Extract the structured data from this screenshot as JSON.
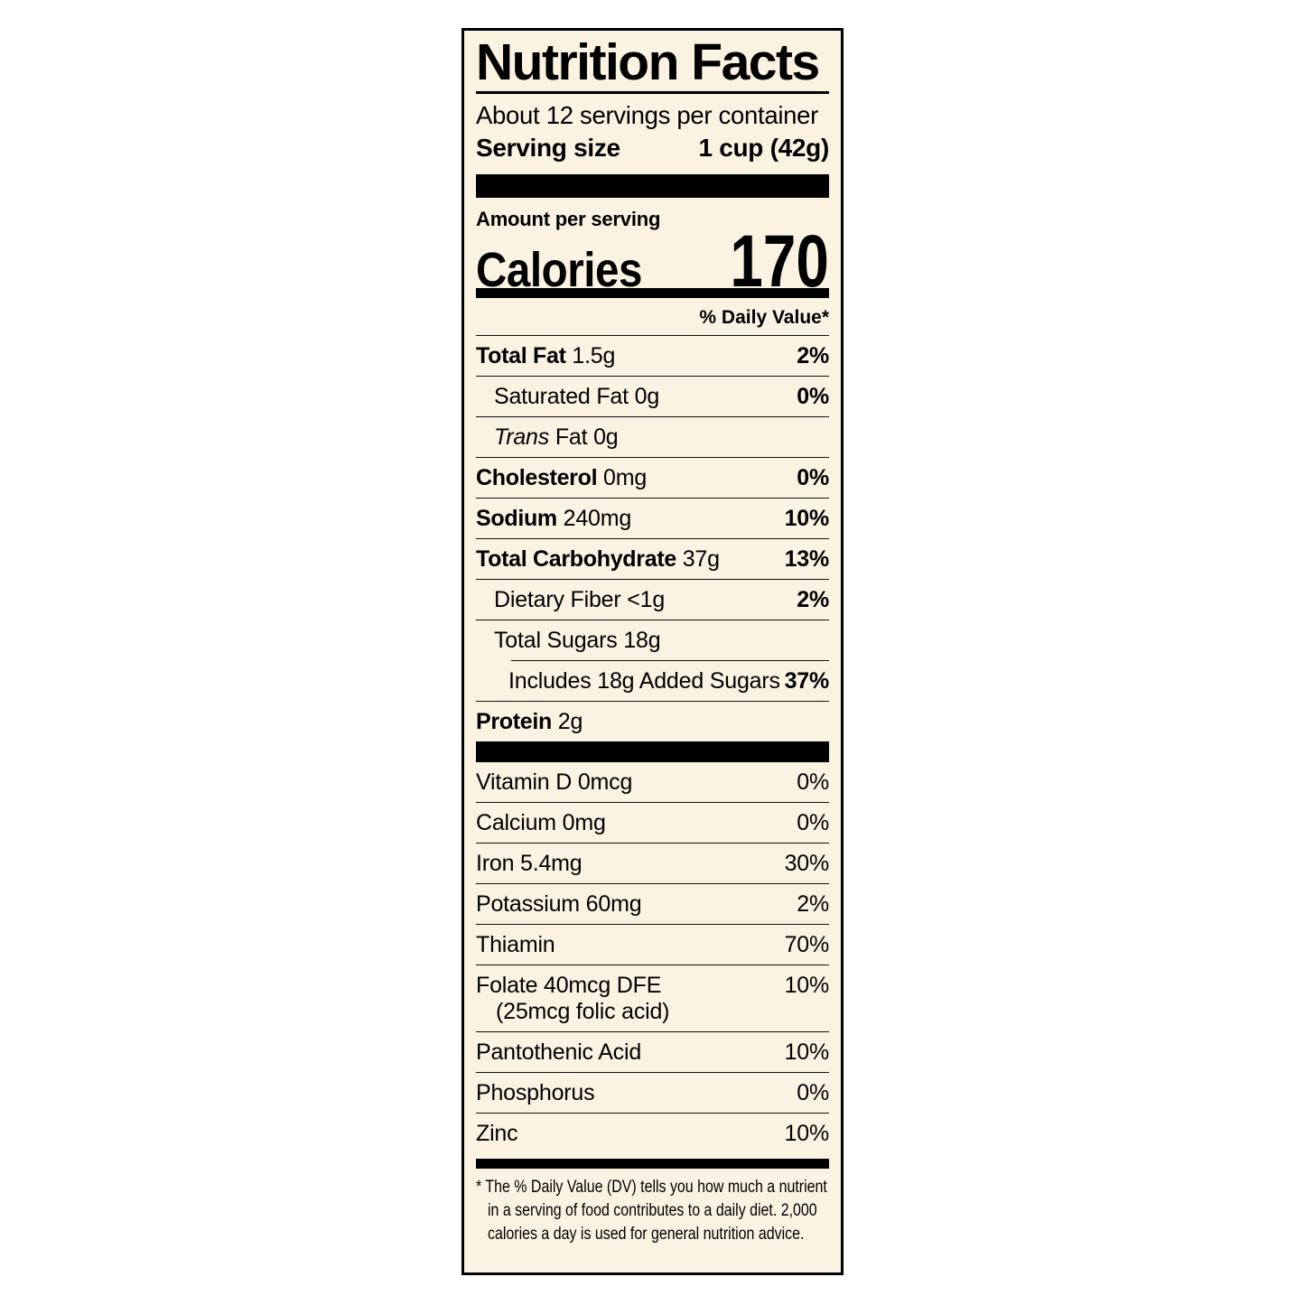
{
  "colors": {
    "label_background": "#faf3e2",
    "ink": "#000000",
    "page_background": "#ffffff"
  },
  "header": {
    "title": "Nutrition Facts",
    "servings_per_container": "About 12 servings per container",
    "serving_size_label": "Serving size",
    "serving_size_value": "1 cup (42g)"
  },
  "calories": {
    "amount_per_serving": "Amount per serving",
    "label": "Calories",
    "value": "170"
  },
  "daily_value_header": "% Daily Value*",
  "nutrients": [
    {
      "name": "Total Fat",
      "amount": "1.5g",
      "dv": "2%"
    },
    {
      "name": "Saturated Fat",
      "amount": "0g",
      "dv": "0%"
    },
    {
      "name_italic": "Trans",
      "name": "Fat",
      "amount": "0g",
      "dv": ""
    },
    {
      "name": "Cholesterol",
      "amount": "0mg",
      "dv": "0%"
    },
    {
      "name": "Sodium",
      "amount": "240mg",
      "dv": "10%"
    },
    {
      "name": "Total Carbohydrate",
      "amount": "37g",
      "dv": "13%"
    },
    {
      "name": "Dietary Fiber",
      "amount": "<1g",
      "dv": "2%"
    },
    {
      "name": "Total Sugars",
      "amount": "18g",
      "dv": ""
    },
    {
      "name": "Includes 18g Added Sugars",
      "amount": "",
      "dv": "37%"
    },
    {
      "name": "Protein",
      "amount": "2g",
      "dv": ""
    }
  ],
  "vitamins": [
    {
      "name": "Vitamin D 0mcg",
      "dv": "0%"
    },
    {
      "name": "Calcium 0mg",
      "dv": "0%"
    },
    {
      "name": "Iron 5.4mg",
      "dv": "30%"
    },
    {
      "name": "Potassium 60mg",
      "dv": "2%"
    },
    {
      "name": "Thiamin",
      "dv": "70%"
    },
    {
      "name": "Folate 40mcg DFE",
      "sub": "(25mcg folic acid)",
      "dv": "10%"
    },
    {
      "name": "Pantothenic Acid",
      "dv": "10%"
    },
    {
      "name": "Phosphorus",
      "dv": "0%"
    },
    {
      "name": "Zinc",
      "dv": "10%"
    }
  ],
  "footnote": {
    "lines": [
      "* The % Daily Value (DV) tells you how much a nutrient",
      "in a serving of food contributes to a daily diet. 2,000",
      "calories a day is used for general nutrition advice."
    ]
  }
}
